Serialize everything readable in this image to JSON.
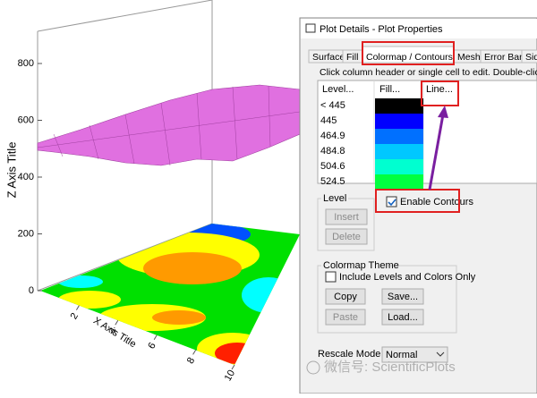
{
  "plot": {
    "z_axis_title": "Z Axis Title",
    "x_axis_title": "X Axis Title",
    "z_ticks": [
      0,
      200,
      400,
      600,
      800
    ],
    "x_ticks": [
      2,
      4,
      6,
      8,
      10
    ]
  },
  "dialog": {
    "title": "Plot Details - Plot Properties",
    "tabs": [
      "Surface",
      "Fill",
      "Colormap / Contours",
      "Mesh",
      "Error Bar",
      "Side"
    ],
    "instruction": "Click column header or single cell to edit. Double-click Level cell",
    "table": {
      "headers": [
        "Level...",
        "Fill...",
        "Line..."
      ],
      "rows": [
        {
          "level": "< 445",
          "fill": "#000000"
        },
        {
          "level": 445,
          "fill": "#0000ff"
        },
        {
          "level": 464.9,
          "fill": "#0070ff"
        },
        {
          "level": 484.8,
          "fill": "#00c8ff"
        },
        {
          "level": 504.6,
          "fill": "#00ffd0"
        },
        {
          "level": 524.5,
          "fill": "#00ff40"
        }
      ]
    },
    "enable_contours": "Enable Contours",
    "level_group": {
      "title": "Level",
      "buttons": [
        "Insert",
        "Delete"
      ]
    },
    "colormap_theme": {
      "title": "Colormap Theme",
      "checkbox": "Include Levels and Colors Only",
      "buttons": [
        "Copy",
        "Save...",
        "Paste",
        "Load..."
      ]
    },
    "rescale_mode": {
      "label": "Rescale Mode",
      "value": "Normal"
    }
  },
  "watermark": "微信号: ScientificPlots"
}
